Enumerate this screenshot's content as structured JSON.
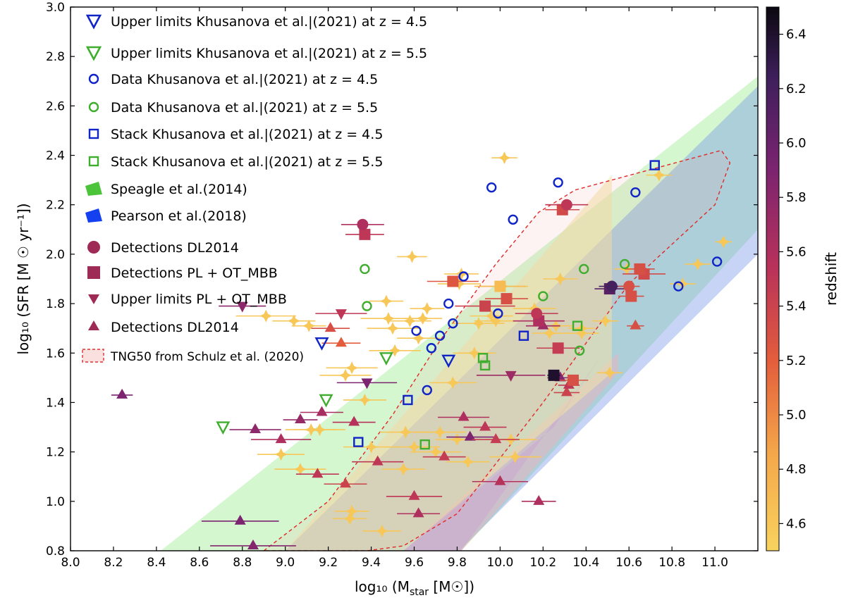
{
  "chart_data": {
    "type": "scatter",
    "xlabel": "log₁₀ (M",
    "xlabel_sub": "star",
    "xlabel_unit": " [M☉])",
    "ylabel": "log₁₀ (SFR [M ☉ yr⁻¹])",
    "xlim": [
      8.0,
      11.2
    ],
    "ylim": [
      0.8,
      3.0
    ],
    "x_ticks": [
      "8.0",
      "8.2",
      "8.4",
      "8.6",
      "8.8",
      "9.0",
      "9.2",
      "9.4",
      "9.6",
      "9.8",
      "10.0",
      "10.2",
      "10.4",
      "10.6",
      "10.8",
      "11.0"
    ],
    "x_tick_values": [
      8.0,
      8.2,
      8.4,
      8.6,
      8.8,
      9.0,
      9.2,
      9.4,
      9.6,
      9.8,
      10.0,
      10.2,
      10.4,
      10.6,
      10.8,
      11.0
    ],
    "y_ticks": [
      "0.8",
      "1.0",
      "1.2",
      "1.4",
      "1.6",
      "1.8",
      "2.0",
      "2.2",
      "2.4",
      "2.6",
      "2.8",
      "3.0"
    ],
    "y_tick_values": [
      0.8,
      1.0,
      1.2,
      1.4,
      1.6,
      1.8,
      2.0,
      2.2,
      2.4,
      2.6,
      2.8,
      3.0
    ],
    "colorbar": {
      "label": "redshift",
      "range": [
        4.5,
        6.5
      ],
      "ticks": [
        "4.6",
        "4.8",
        "5.0",
        "5.2",
        "5.4",
        "5.6",
        "5.8",
        "6.0",
        "6.2",
        "6.4"
      ],
      "tick_values": [
        4.6,
        4.8,
        5.0,
        5.2,
        5.4,
        5.6,
        5.8,
        6.0,
        6.2,
        6.4
      ]
    },
    "legend": [
      {
        "label": "Upper limits Khusanova et al.|(2021) at z = 4.5",
        "marker": "triangle-down-open",
        "color": "#1024c8"
      },
      {
        "label": "Upper limits Khusanova et al.|(2021) at z = 5.5",
        "marker": "triangle-down-open",
        "color": "#3fae2e"
      },
      {
        "label": "Data Khusanova et al.|(2021) at z = 4.5",
        "marker": "circle-open",
        "color": "#1024c8"
      },
      {
        "label": "Data Khusanova et al.|(2021) at z = 5.5",
        "marker": "circle-open",
        "color": "#3fae2e"
      },
      {
        "label": "Stack Khusanova et al.|(2021) at z = 4.5",
        "marker": "square-open",
        "color": "#1024c8"
      },
      {
        "label": "Stack Khusanova et al.|(2021) at z = 5.5",
        "marker": "square-open",
        "color": "#3fae2e"
      },
      {
        "label": "Speagle et al.(2014)",
        "marker": "patch",
        "color": "#4cc43a"
      },
      {
        "label": "Pearson et al.(2018)",
        "marker": "patch",
        "color": "#1440f0"
      },
      {
        "label": "Detections DL2014",
        "marker": "circle",
        "color": "#9e2a56"
      },
      {
        "label": "Detections PL + OT_MBB",
        "marker": "square",
        "color": "#9e2a56"
      },
      {
        "label": "Upper limits PL + OT_MBB",
        "marker": "triangle-down",
        "color": "#9e2a56"
      },
      {
        "label": "Detections DL2014",
        "marker": "triangle-up",
        "color": "#9e2a56"
      },
      {
        "label": "TNG50 from Schulz et al. (2020)",
        "marker": "dashed-patch",
        "color": "#e03030"
      }
    ],
    "speagle_band": [
      [
        8.42,
        0.8
      ],
      [
        11.2,
        2.72
      ],
      [
        11.2,
        2.1
      ],
      [
        9.82,
        0.8
      ]
    ],
    "pearson_band": [
      [
        9.0,
        0.8
      ],
      [
        11.2,
        2.68
      ],
      [
        11.2,
        2.0
      ],
      [
        9.81,
        0.8
      ]
    ],
    "yellow_band": [
      [
        9.0,
        0.8
      ],
      [
        10.52,
        2.32
      ],
      [
        10.52,
        1.52
      ],
      [
        9.55,
        0.8
      ]
    ],
    "pink_band": [
      [
        9.55,
        0.8
      ],
      [
        10.55,
        1.6
      ],
      [
        10.55,
        1.52
      ],
      [
        9.82,
        0.8
      ]
    ],
    "purple_band": [
      [
        9.55,
        0.8
      ],
      [
        10.25,
        1.3
      ],
      [
        10.48,
        1.6
      ],
      [
        9.82,
        0.8
      ]
    ],
    "tng50_outline": [
      [
        8.9,
        0.8
      ],
      [
        9.2,
        1.0
      ],
      [
        9.5,
        1.35
      ],
      [
        9.72,
        1.65
      ],
      [
        9.98,
        1.96
      ],
      [
        10.18,
        2.17
      ],
      [
        10.35,
        2.26
      ],
      [
        11.03,
        2.42
      ],
      [
        11.07,
        2.37
      ],
      [
        11.0,
        2.2
      ],
      [
        10.6,
        1.88
      ],
      [
        10.2,
        1.4
      ],
      [
        9.8,
        0.95
      ],
      [
        9.55,
        0.82
      ],
      [
        9.38,
        0.8
      ]
    ],
    "khusanova_upper_z45": [
      [
        9.17,
        1.64
      ],
      [
        9.76,
        1.57
      ]
    ],
    "khusanova_upper_z55": [
      [
        8.71,
        1.3
      ],
      [
        9.19,
        1.41
      ],
      [
        9.47,
        1.58
      ]
    ],
    "khusanova_data_z45": [
      [
        9.61,
        1.69
      ],
      [
        9.68,
        1.62
      ],
      [
        9.66,
        1.45
      ],
      [
        9.72,
        1.67
      ],
      [
        9.76,
        1.8
      ],
      [
        9.78,
        1.72
      ],
      [
        9.83,
        1.91
      ],
      [
        9.96,
        2.27
      ],
      [
        9.99,
        1.76
      ],
      [
        10.06,
        2.14
      ],
      [
        10.27,
        2.29
      ],
      [
        10.63,
        2.25
      ],
      [
        10.83,
        1.87
      ],
      [
        11.01,
        1.97
      ]
    ],
    "khusanova_data_z55": [
      [
        9.37,
        1.94
      ],
      [
        9.38,
        1.79
      ],
      [
        10.2,
        1.83
      ],
      [
        10.37,
        1.61
      ],
      [
        10.39,
        1.94
      ],
      [
        10.58,
        1.96
      ]
    ],
    "khusanova_stack_z45": [
      [
        9.34,
        1.24
      ],
      [
        9.57,
        1.41
      ],
      [
        10.11,
        1.67
      ],
      [
        10.72,
        2.36
      ]
    ],
    "khusanova_stack_z55": [
      [
        9.65,
        1.23
      ],
      [
        9.92,
        1.58
      ],
      [
        9.93,
        1.55
      ],
      [
        10.36,
        1.71
      ]
    ],
    "pl_detections": [
      {
        "x": 9.37,
        "y": 2.08,
        "z": 5.5,
        "xerr": 0.09
      },
      {
        "x": 9.78,
        "y": 1.89,
        "z": 5.25,
        "xerr": 0.12
      },
      {
        "x": 9.93,
        "y": 1.79,
        "z": 5.4,
        "xerr": 0.14
      },
      {
        "x": 10.0,
        "y": 1.87,
        "z": 4.7,
        "xerr": 0.12
      },
      {
        "x": 10.03,
        "y": 1.82,
        "z": 5.3,
        "xerr": 0.1
      },
      {
        "x": 10.18,
        "y": 1.73,
        "z": 5.6,
        "xerr": 0.12
      },
      {
        "x": 10.27,
        "y": 1.62,
        "z": 5.45,
        "xerr": 0.1
      },
      {
        "x": 10.29,
        "y": 2.18,
        "z": 5.35,
        "xerr": 0.08
      },
      {
        "x": 10.34,
        "y": 1.49,
        "z": 5.3,
        "xerr": 0.07
      },
      {
        "x": 10.51,
        "y": 1.86,
        "z": 6.1,
        "xerr": 0.07
      },
      {
        "x": 10.61,
        "y": 1.83,
        "z": 5.3,
        "xerr": 0.06
      },
      {
        "x": 10.67,
        "y": 1.92,
        "z": 5.35,
        "xerr": 0.1
      },
      {
        "x": 10.65,
        "y": 1.94,
        "z": 5.3,
        "xerr": 0.07
      },
      {
        "x": 10.25,
        "y": 1.51,
        "z": 6.4,
        "xerr": 0.03
      }
    ],
    "dl_detections": [
      {
        "x": 9.36,
        "y": 2.12,
        "z": 5.6,
        "xerr": 0.1
      },
      {
        "x": 10.31,
        "y": 2.2,
        "z": 5.5,
        "xerr": 0.1
      },
      {
        "x": 10.52,
        "y": 1.87,
        "z": 6.2,
        "xerr": 0.06
      },
      {
        "x": 10.6,
        "y": 1.87,
        "z": 5.3,
        "xerr": 0.05
      },
      {
        "x": 10.17,
        "y": 1.76,
        "z": 5.5,
        "xerr": 0.1
      }
    ],
    "upper_pl": [
      {
        "x": 8.8,
        "y": 1.79,
        "z": 5.8,
        "xerr": 0.11
      },
      {
        "x": 9.38,
        "y": 1.48,
        "z": 5.9,
        "xerr": 0.14
      },
      {
        "x": 10.05,
        "y": 1.51,
        "z": 5.7,
        "xerr": 0.16
      },
      {
        "x": 9.26,
        "y": 1.76,
        "z": 5.5,
        "xerr": 0.12
      }
    ],
    "dl_triangles": [
      {
        "x": 8.24,
        "y": 1.43,
        "z": 5.9,
        "xerr": 0.05
      },
      {
        "x": 8.79,
        "y": 0.92,
        "z": 5.9,
        "xerr": 0.18
      },
      {
        "x": 8.85,
        "y": 0.82,
        "z": 5.85,
        "xerr": 0.2
      },
      {
        "x": 8.86,
        "y": 1.29,
        "z": 5.8,
        "xerr": 0.12
      },
      {
        "x": 8.98,
        "y": 1.25,
        "z": 5.6,
        "xerr": 0.14
      },
      {
        "x": 9.07,
        "y": 1.33,
        "z": 5.75,
        "xerr": 0.08
      },
      {
        "x": 9.15,
        "y": 1.11,
        "z": 5.5,
        "xerr": 0.1
      },
      {
        "x": 9.17,
        "y": 1.36,
        "z": 5.65,
        "xerr": 0.1
      },
      {
        "x": 9.21,
        "y": 1.7,
        "z": 5.3,
        "xerr": 0.09
      },
      {
        "x": 9.26,
        "y": 1.64,
        "z": 5.2,
        "xerr": 0.09
      },
      {
        "x": 9.28,
        "y": 1.07,
        "z": 5.4,
        "xerr": 0.1
      },
      {
        "x": 9.32,
        "y": 1.32,
        "z": 5.55,
        "xerr": 0.1
      },
      {
        "x": 9.43,
        "y": 1.16,
        "z": 5.5,
        "xerr": 0.12
      },
      {
        "x": 9.6,
        "y": 1.02,
        "z": 5.5,
        "xerr": 0.13
      },
      {
        "x": 9.62,
        "y": 0.95,
        "z": 5.6,
        "xerr": 0.1
      },
      {
        "x": 9.74,
        "y": 1.18,
        "z": 5.45,
        "xerr": 0.1
      },
      {
        "x": 9.83,
        "y": 1.34,
        "z": 5.6,
        "xerr": 0.12
      },
      {
        "x": 9.86,
        "y": 1.26,
        "z": 5.9,
        "xerr": 0.11
      },
      {
        "x": 9.93,
        "y": 1.3,
        "z": 5.5,
        "xerr": 0.1
      },
      {
        "x": 9.98,
        "y": 1.25,
        "z": 5.45,
        "xerr": 0.11
      },
      {
        "x": 10.0,
        "y": 1.08,
        "z": 5.55,
        "xerr": 0.13
      },
      {
        "x": 10.18,
        "y": 1.0,
        "z": 5.6,
        "xerr": 0.08
      },
      {
        "x": 10.2,
        "y": 1.71,
        "z": 5.7,
        "xerr": 0.08
      },
      {
        "x": 10.28,
        "y": 1.5,
        "z": 5.85,
        "xerr": 0.06
      },
      {
        "x": 10.31,
        "y": 1.44,
        "z": 5.4,
        "xerr": 0.06
      },
      {
        "x": 10.32,
        "y": 1.47,
        "z": 5.5,
        "xerr": 0.05
      },
      {
        "x": 10.63,
        "y": 1.71,
        "z": 5.3,
        "xerr": 0.04
      }
    ],
    "yellow_points": [
      {
        "x": 8.91,
        "y": 1.75,
        "xerr": 0.14
      },
      {
        "x": 9.04,
        "y": 1.73,
        "xerr": 0.1
      },
      {
        "x": 9.11,
        "y": 1.71,
        "xerr": 0.08
      },
      {
        "x": 8.98,
        "y": 1.19,
        "xerr": 0.11
      },
      {
        "x": 9.07,
        "y": 1.13,
        "xerr": 0.12
      },
      {
        "x": 9.12,
        "y": 1.29,
        "xerr": 0.12
      },
      {
        "x": 9.16,
        "y": 1.29,
        "xerr": 0.12
      },
      {
        "x": 9.31,
        "y": 1.54,
        "xerr": 0.12
      },
      {
        "x": 9.28,
        "y": 1.51,
        "xerr": 0.12
      },
      {
        "x": 9.3,
        "y": 0.93,
        "xerr": 0.08
      },
      {
        "x": 9.31,
        "y": 0.96,
        "xerr": 0.08
      },
      {
        "x": 9.4,
        "y": 1.22,
        "xerr": 0.13
      },
      {
        "x": 9.45,
        "y": 0.88,
        "xerr": 0.09
      },
      {
        "x": 9.47,
        "y": 1.81,
        "xerr": 0.08
      },
      {
        "x": 9.48,
        "y": 1.74,
        "xerr": 0.13
      },
      {
        "x": 9.5,
        "y": 1.7,
        "xerr": 0.12
      },
      {
        "x": 9.51,
        "y": 1.61,
        "xerr": 0.12
      },
      {
        "x": 9.56,
        "y": 1.28,
        "xerr": 0.12
      },
      {
        "x": 9.58,
        "y": 1.73,
        "xerr": 0.1
      },
      {
        "x": 9.6,
        "y": 1.22,
        "xerr": 0.12
      },
      {
        "x": 9.62,
        "y": 1.66,
        "xerr": 0.1
      },
      {
        "x": 9.64,
        "y": 1.74,
        "xerr": 0.09
      },
      {
        "x": 9.66,
        "y": 1.78,
        "xerr": 0.08
      },
      {
        "x": 9.7,
        "y": 1.2,
        "xerr": 0.12
      },
      {
        "x": 9.72,
        "y": 1.28,
        "xerr": 0.12
      },
      {
        "x": 9.78,
        "y": 1.48,
        "xerr": 0.11
      },
      {
        "x": 9.8,
        "y": 1.25,
        "xerr": 0.1
      },
      {
        "x": 9.81,
        "y": 1.88,
        "xerr": 0.1
      },
      {
        "x": 9.82,
        "y": 1.92,
        "xerr": 0.08
      },
      {
        "x": 9.85,
        "y": 1.16,
        "xerr": 0.1
      },
      {
        "x": 9.88,
        "y": 1.6,
        "xerr": 0.1
      },
      {
        "x": 9.9,
        "y": 1.72,
        "xerr": 0.12
      },
      {
        "x": 9.96,
        "y": 1.75,
        "xerr": 0.1
      },
      {
        "x": 9.98,
        "y": 1.73,
        "xerr": 0.1
      },
      {
        "x": 10.01,
        "y": 1.87,
        "xerr": 0.12
      },
      {
        "x": 10.05,
        "y": 1.25,
        "xerr": 0.12
      },
      {
        "x": 10.07,
        "y": 1.18,
        "xerr": 0.12
      },
      {
        "x": 10.16,
        "y": 1.78,
        "xerr": 0.1
      },
      {
        "x": 10.23,
        "y": 1.68,
        "xerr": 0.08
      },
      {
        "x": 10.26,
        "y": 1.71,
        "xerr": 0.08
      },
      {
        "x": 10.28,
        "y": 1.9,
        "xerr": 0.08
      },
      {
        "x": 10.38,
        "y": 1.68,
        "xerr": 0.08
      },
      {
        "x": 10.38,
        "y": 1.7,
        "xerr": 0.06
      },
      {
        "x": 10.49,
        "y": 1.73,
        "xerr": 0.06
      },
      {
        "x": 10.51,
        "y": 1.52,
        "xerr": 0.06
      },
      {
        "x": 10.59,
        "y": 1.94,
        "xerr": 0.06
      },
      {
        "x": 10.85,
        "y": 1.88,
        "xerr": 0.06
      },
      {
        "x": 10.92,
        "y": 1.96,
        "xerr": 0.06
      },
      {
        "x": 9.59,
        "y": 1.99,
        "xerr": 0.07
      },
      {
        "x": 10.02,
        "y": 2.39,
        "xerr": 0.06
      },
      {
        "x": 10.74,
        "y": 2.32,
        "xerr": 0.06
      },
      {
        "x": 11.04,
        "y": 2.05,
        "xerr": 0.04
      },
      {
        "x": 9.37,
        "y": 1.41,
        "xerr": 0.1
      },
      {
        "x": 9.55,
        "y": 1.13,
        "xerr": 0.1
      }
    ]
  }
}
